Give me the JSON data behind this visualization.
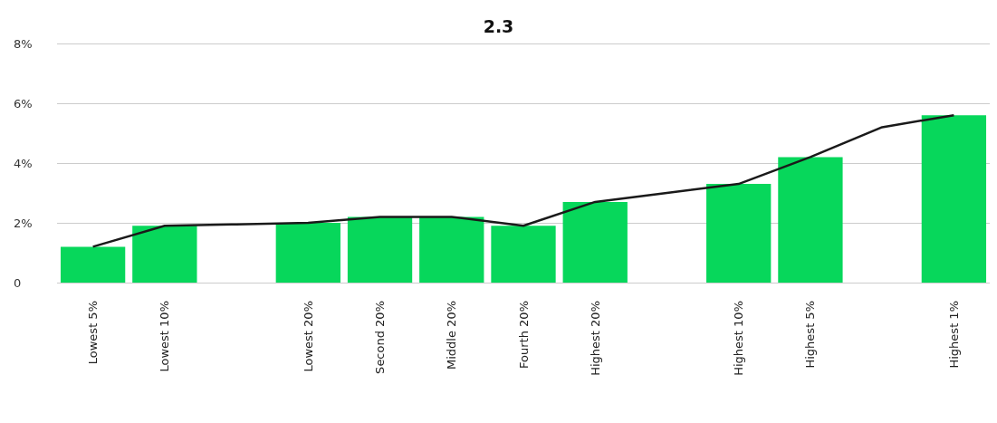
{
  "chart_data": {
    "type": "bar",
    "title": "2.3",
    "categories": [
      "Lowest 5%",
      "Lowest 10%",
      null,
      "Lowest 20%",
      "Second 20%",
      "Middle 20%",
      "Fourth 20%",
      "Highest 20%",
      null,
      "Highest 10%",
      "Highest 5%",
      null,
      "Highest 1%"
    ],
    "series": [
      {
        "color": "#07d75b",
        "values": [
          1.2,
          1.9,
          null,
          2.0,
          2.2,
          2.2,
          1.9,
          2.7,
          null,
          3.3,
          4.2,
          null,
          5.6
        ]
      },
      {
        "type": "line",
        "color": "#1a1a1a",
        "values": [
          1.2,
          1.9,
          1.95,
          2.0,
          2.2,
          2.2,
          1.9,
          2.7,
          3.0,
          3.3,
          4.2,
          5.2,
          5.6
        ]
      }
    ],
    "ylim": [
      0,
      8
    ],
    "yticks": [
      {
        "value": 0,
        "label": "0"
      },
      {
        "value": 2,
        "label": "2%"
      },
      {
        "value": 4,
        "label": "4%"
      },
      {
        "value": 6,
        "label": "6%"
      },
      {
        "value": 8,
        "label": "8%"
      }
    ],
    "grid": "y",
    "marker": "none"
  }
}
